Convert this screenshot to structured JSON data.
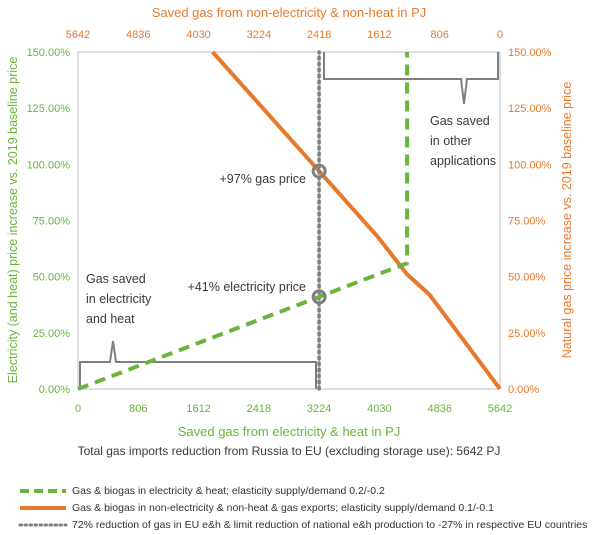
{
  "chart_data": {
    "type": "line",
    "bottom_axis": {
      "label": "Saved gas from electricity & heat in PJ",
      "ticks": [
        "0",
        "806",
        "1612",
        "2418",
        "3224",
        "4030",
        "4836",
        "5642"
      ],
      "range": [
        0,
        5642
      ]
    },
    "top_axis": {
      "label": "Saved gas from non-electricity & non-heat in PJ",
      "ticks": [
        "5642",
        "4836",
        "4030",
        "3224",
        "2418",
        "1612",
        "806",
        "0"
      ],
      "range": [
        5642,
        0
      ]
    },
    "left_axis": {
      "label": "Electricity (and heat) price increase vs. 2019 baseline price",
      "ticks": [
        "0.00%",
        "25.00%",
        "50.00%",
        "75.00%",
        "100.00%",
        "125.00%",
        "150.00%"
      ],
      "range": [
        0,
        150
      ]
    },
    "right_axis": {
      "label": "Natural gas price increase vs. 2019 baseline price",
      "ticks": [
        "0.00%",
        "25.00%",
        "50.00%",
        "75.00%",
        "100.00%",
        "125.00%",
        "150.00%"
      ],
      "range": [
        0,
        150
      ]
    },
    "series": [
      {
        "name": "Gas & biogas in electricity & heat; elasticity supply/demand 0.2/-0.2",
        "color": "#6ab43e",
        "style": "dashed",
        "axis": "left",
        "x": [
          0,
          4400,
          4400
        ],
        "y": [
          0,
          56,
          150
        ]
      },
      {
        "name": "Gas & biogas in non-electricity & non-heat & gas exports; elasticity supply/demand 0.1/-0.1",
        "color": "#e8792b",
        "style": "solid",
        "axis": "right",
        "x": [
          1800,
          3224,
          4000,
          4400,
          4700,
          5642
        ],
        "y": [
          150,
          97,
          68,
          51,
          42,
          0
        ]
      },
      {
        "name": "72% reduction of gas in EU e&h & limit reduction of national e&h production to -27% in respective EU countries",
        "color": "#7f7f7f",
        "style": "dotted",
        "axis": "left",
        "x": [
          3224,
          3224
        ],
        "y": [
          0,
          150
        ]
      }
    ],
    "markers": [
      {
        "label": "+97% gas price",
        "x": 3224,
        "y": 97
      },
      {
        "label": "+41% electricity price",
        "x": 3224,
        "y": 41
      }
    ],
    "brace_labels": {
      "electricity_heat": [
        "Gas saved",
        "in electricity",
        "and heat"
      ],
      "other": [
        "Gas saved",
        "in other",
        "applications"
      ]
    },
    "footnote": "Total gas imports reduction from Russia to EU (excluding storage use): 5642 PJ",
    "grid": false,
    "legend_position": "bottom"
  },
  "colors": {
    "green": "#6ab43e",
    "orange": "#e8792b",
    "gray": "#7f7f7f",
    "axis": "#bfbfbf"
  }
}
